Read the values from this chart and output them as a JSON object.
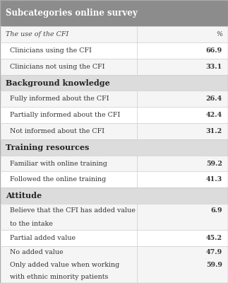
{
  "title": "Subcategories online survey",
  "title_bg": "#8c8c8c",
  "title_color": "#ffffff",
  "section_bg": "#d9d9d9",
  "col_divider": 0.6,
  "rows": [
    {
      "type": "header_italic",
      "label": "The use of the CFI",
      "value": "%",
      "bg": "#f5f5f5"
    },
    {
      "type": "data",
      "label": "Clinicians using the CFI",
      "value": "66.9",
      "bg": "#ffffff"
    },
    {
      "type": "data",
      "label": "Clinicians not using the CFI",
      "value": "33.1",
      "bg": "#f5f5f5"
    },
    {
      "type": "section",
      "label": "Background knowledge",
      "value": "",
      "bg": "#dcdcdc"
    },
    {
      "type": "data",
      "label": "Fully informed about the CFI",
      "value": "26.4",
      "bg": "#f5f5f5"
    },
    {
      "type": "data",
      "label": "Partially informed about the CFI",
      "value": "42.4",
      "bg": "#ffffff"
    },
    {
      "type": "data",
      "label": "Not informed about the CFI",
      "value": "31.2",
      "bg": "#f5f5f5"
    },
    {
      "type": "section",
      "label": "Training resources",
      "value": "",
      "bg": "#dcdcdc"
    },
    {
      "type": "data",
      "label": "Familiar with online training",
      "value": "59.2",
      "bg": "#f5f5f5"
    },
    {
      "type": "data",
      "label": "Followed the online training",
      "value": "41.3",
      "bg": "#ffffff"
    },
    {
      "type": "section",
      "label": "Attitude",
      "value": "",
      "bg": "#dcdcdc"
    },
    {
      "type": "data_multiline",
      "label": "Believe that the CFI has added value\nto the intake",
      "value": "6.9",
      "value_line": 0,
      "bg": "#f5f5f5",
      "nlines": 2
    },
    {
      "type": "data",
      "label": "Partial added value",
      "value": "45.2",
      "bg": "#ffffff"
    },
    {
      "type": "data_multiline",
      "label": "No added value\nOnly added value when working\nwith ethnic minority patients",
      "value": "47.9\n59.9",
      "value_line": 0,
      "bg": "#f5f5f5",
      "nlines": 3
    }
  ],
  "title_fontsize": 8.5,
  "section_fontsize": 8.0,
  "data_fontsize": 6.8,
  "value_fontsize": 6.8
}
